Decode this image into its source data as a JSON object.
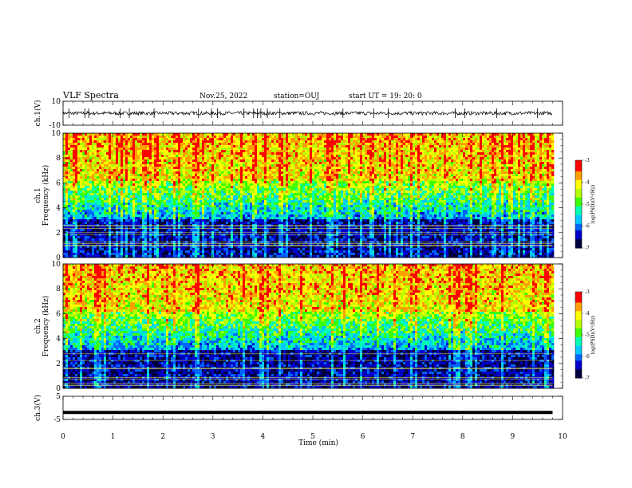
{
  "header": {
    "title": "VLF Spectra",
    "date": "Nov.25, 2022",
    "station": "station=OUJ",
    "start": "start  UT =   19: 20: 0"
  },
  "colors": {
    "spectrogram_map": [
      "#000040",
      "#0000c8",
      "#0064ff",
      "#00c8ff",
      "#00ffb4",
      "#3cff00",
      "#b4ff00",
      "#ffff00",
      "#ffa000",
      "#ff0000",
      "#dc0000"
    ]
  },
  "chart_data": [
    {
      "type": "line",
      "name": "ch1-waveform",
      "ylabel": "ch.1(V)",
      "ylim": [
        -10,
        10
      ],
      "yticks": [
        "10",
        "-10"
      ],
      "x_range": [
        0,
        9.8
      ],
      "baseline": 0,
      "noise_amplitude": 1.5
    },
    {
      "type": "heatmap",
      "name": "ch1-spectrogram",
      "ylabel_top": "ch.1",
      "ylabel": "Frequency (kHz)",
      "ylim": [
        0,
        10
      ],
      "yticks": [
        "0",
        "2",
        "4",
        "6",
        "8",
        "10"
      ],
      "x_range": [
        0,
        9.8
      ],
      "colorbar": {
        "label": "log(PSD)(V²/Hz)",
        "range": [
          -7,
          -3
        ],
        "ticks": [
          "-3",
          "-4",
          "-5",
          "-6",
          "-7"
        ]
      }
    },
    {
      "type": "heatmap",
      "name": "ch2-spectrogram",
      "ylabel_top": "ch.2",
      "ylabel": "Frequency (kHz)",
      "ylim": [
        0,
        10
      ],
      "yticks": [
        "0",
        "2",
        "4",
        "6",
        "8",
        "10"
      ],
      "x_range": [
        0,
        9.8
      ],
      "colorbar": {
        "label": "log(PSD)(V²/Hz)",
        "range": [
          -7,
          -3
        ],
        "ticks": [
          "-3",
          "-4",
          "-5",
          "-6",
          "-7"
        ]
      }
    },
    {
      "type": "line",
      "name": "ch3-waveform",
      "ylabel": "ch.3(V)",
      "ylim": [
        -5,
        5
      ],
      "yticks": [
        "5",
        "-5"
      ],
      "x_range": [
        0,
        9.8
      ],
      "baseline": -2
    }
  ],
  "xaxis": {
    "label": "Time (min)",
    "range": [
      0,
      10
    ],
    "ticks": [
      "0",
      "1",
      "2",
      "3",
      "4",
      "5",
      "6",
      "7",
      "8",
      "9",
      "10"
    ]
  }
}
